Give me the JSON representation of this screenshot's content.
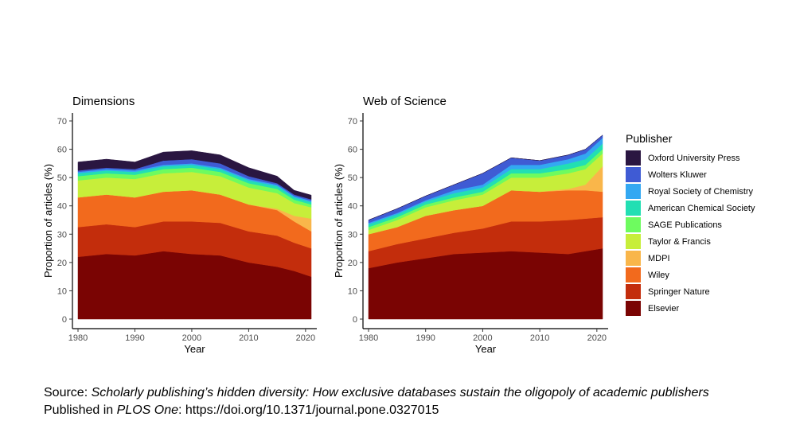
{
  "chart_data": {
    "legend_title": "Publisher",
    "publishers": [
      {
        "name": "Oxford University Press",
        "color": "#2a1641"
      },
      {
        "name": "Wolters Kluwer",
        "color": "#3f5bd4"
      },
      {
        "name": "Royal Society of Chemistry",
        "color": "#33a8f2"
      },
      {
        "name": "American Chemical Society",
        "color": "#22dfb3"
      },
      {
        "name": "SAGE Publications",
        "color": "#6efb5f"
      },
      {
        "name": "Taylor & Francis",
        "color": "#c7ee3a"
      },
      {
        "name": "MDPI",
        "color": "#f9b64a"
      },
      {
        "name": "Wiley",
        "color": "#f26a1d"
      },
      {
        "name": "Springer Nature",
        "color": "#c32d0c"
      },
      {
        "name": "Elsevier",
        "color": "#7a0403"
      }
    ],
    "panels": [
      {
        "type": "area",
        "stacked": true,
        "title": "Dimensions",
        "xlabel": "Year",
        "ylabel": "Proportion of articles (%)",
        "xlim": [
          1980,
          2021
        ],
        "ylim": [
          0,
          70
        ],
        "xticks": [
          1980,
          1990,
          2000,
          2010,
          2020
        ],
        "yticks": [
          0,
          10,
          20,
          30,
          40,
          50,
          60,
          70
        ],
        "x": [
          1980,
          1985,
          1990,
          1995,
          2000,
          2005,
          2010,
          2015,
          2018,
          2021
        ],
        "series": [
          {
            "name": "Elsevier",
            "values": [
              22,
              23,
              22.5,
              24,
              23,
              22.5,
              20,
              18.5,
              17,
              15
            ]
          },
          {
            "name": "Springer Nature",
            "values": [
              10.5,
              10.5,
              10,
              10.5,
              11.5,
              11.5,
              11,
              11,
              10,
              10
            ]
          },
          {
            "name": "Wiley",
            "values": [
              10.5,
              10.5,
              10.5,
              10.5,
              11,
              10,
              9.5,
              9,
              7.5,
              6
            ]
          },
          {
            "name": "MDPI",
            "values": [
              0,
              0,
              0,
              0,
              0,
              0,
              0,
              0.5,
              2,
              4.5
            ]
          },
          {
            "name": "Taylor & Francis",
            "values": [
              6,
              6,
              6.5,
              6.5,
              6.5,
              6.5,
              6,
              5.5,
              4.5,
              4
            ]
          },
          {
            "name": "SAGE Publications",
            "values": [
              1.5,
              1.5,
              1.5,
              1.5,
              1.5,
              1.5,
              1.5,
              1.5,
              1.2,
              1
            ]
          },
          {
            "name": "American Chemical Society",
            "values": [
              1,
              1,
              1,
              1,
              1,
              1,
              1,
              1,
              0.8,
              0.8
            ]
          },
          {
            "name": "Royal Society of Chemistry",
            "values": [
              0.5,
              0.5,
              0.5,
              0.5,
              0.5,
              0.5,
              0.5,
              0.5,
              0.5,
              0.5
            ]
          },
          {
            "name": "Wolters Kluwer",
            "values": [
              0.5,
              0.5,
              0.5,
              1.5,
              1.5,
              1.5,
              1,
              0.5,
              0.5,
              0.5
            ]
          },
          {
            "name": "Oxford University Press",
            "values": [
              3,
              3,
              2.5,
              3,
              3,
              3,
              3,
              2.5,
              1.5,
              1.5
            ]
          }
        ]
      },
      {
        "type": "area",
        "stacked": true,
        "title": "Web of Science",
        "xlabel": "Year",
        "ylabel": "Proportion of articles (%)",
        "xlim": [
          1980,
          2021
        ],
        "ylim": [
          0,
          70
        ],
        "xticks": [
          1980,
          1990,
          2000,
          2010,
          2020
        ],
        "yticks": [
          0,
          10,
          20,
          30,
          40,
          50,
          60,
          70
        ],
        "x": [
          1980,
          1985,
          1990,
          1995,
          2000,
          2005,
          2010,
          2015,
          2018,
          2021
        ],
        "series": [
          {
            "name": "Elsevier",
            "values": [
              18,
              20,
              21.5,
              23,
              23.5,
              24,
              23.5,
              23,
              24,
              25
            ]
          },
          {
            "name": "Springer Nature",
            "values": [
              6,
              6.5,
              7,
              7.5,
              8.5,
              10.5,
              11,
              12,
              11.5,
              11
            ]
          },
          {
            "name": "Wiley",
            "values": [
              6,
              6,
              8,
              8,
              8,
              11,
              10.5,
              10.5,
              10,
              9
            ]
          },
          {
            "name": "MDPI",
            "values": [
              0,
              0,
              0,
              0,
              0,
              0,
              0,
              0.5,
              2,
              9
            ]
          },
          {
            "name": "Taylor & Francis",
            "values": [
              1.5,
              2.5,
              3,
              3.5,
              4,
              4.5,
              5,
              5.5,
              5.5,
              4.5
            ]
          },
          {
            "name": "SAGE Publications",
            "values": [
              1,
              1,
              1,
              1,
              1,
              1.5,
              1.5,
              1.5,
              1.5,
              1.5
            ]
          },
          {
            "name": "American Chemical Society",
            "values": [
              1,
              1,
              1,
              1.5,
              1.5,
              1.5,
              1.5,
              2,
              2,
              2
            ]
          },
          {
            "name": "Royal Society of Chemistry",
            "values": [
              0.5,
              0.5,
              0.5,
              1,
              1,
              1.5,
              1.5,
              1.5,
              2,
              2
            ]
          },
          {
            "name": "Wolters Kluwer",
            "values": [
              1,
              1.5,
              1.5,
              2,
              4,
              2.5,
              1.5,
              1.5,
              1.5,
              1
            ]
          },
          {
            "name": "Oxford University Press",
            "values": [
              0,
              0,
              0,
              0,
              0,
              0,
              0,
              0,
              0,
              0
            ]
          }
        ]
      }
    ]
  },
  "source": {
    "prefix": "Source: ",
    "paper_title": "Scholarly publishing’s hidden diversity: How exclusive databases sustain the oligopoly of  academic publishers",
    "published_prefix": "Published in ",
    "journal": "PLOS One",
    "doi_text": ": https://doi.org/10.1371/journal.pone.0327015"
  }
}
